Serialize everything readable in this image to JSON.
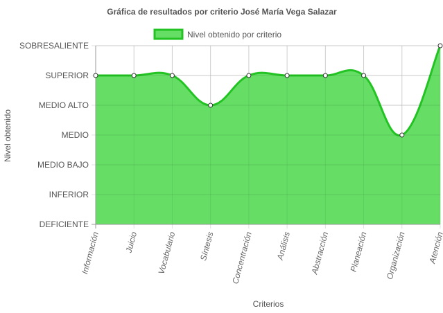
{
  "chart_data": {
    "type": "area",
    "title": "Gráfica de resultados por criterio José María Vega Salazar",
    "xlabel": "Criterios",
    "ylabel": "Nivel obtenido",
    "categories": [
      "Información",
      "Juicio",
      "Vocabulario",
      "Síntesis",
      "Concentración",
      "Análisis",
      "Abstracción",
      "Planeación",
      "Organización",
      "Atención"
    ],
    "y_levels": [
      "DEFICIENTE",
      "INFERIOR",
      "MEDIO BAJO",
      "MEDIO",
      "MEDIO ALTO",
      "SUPERIOR",
      "SOBRESALIENTE"
    ],
    "ylim": [
      0,
      6
    ],
    "series": [
      {
        "name": "Nivel obtenido por criterio",
        "values": [
          5,
          5,
          5,
          4,
          5,
          5,
          5,
          5,
          3,
          6
        ],
        "fill_color": "#66de66",
        "line_color": "#22c322"
      }
    ],
    "grid": true,
    "legend_position": "top"
  }
}
